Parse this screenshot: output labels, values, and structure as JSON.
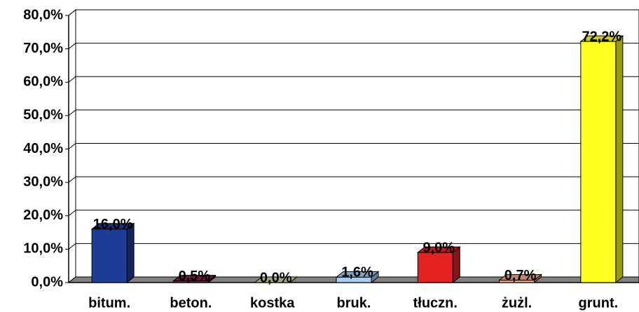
{
  "chart_data": {
    "type": "bar3d",
    "categories": [
      "bitum.",
      "beton.",
      "kostka",
      "bruk.",
      "tłuczn.",
      "żużl.",
      "grunt."
    ],
    "values": [
      16.0,
      0.5,
      0.0,
      1.6,
      9.0,
      0.7,
      72.2
    ],
    "value_labels": [
      "16,0%",
      "0,5%",
      "0,0%",
      "1,6%",
      "9,0%",
      "0,7%",
      "72,2%"
    ],
    "colors": [
      "#1f3c96",
      "#7c1e40",
      "#cfcf9c",
      "#a9cbec",
      "#e52222",
      "#eaa98f",
      "#ffff22"
    ],
    "ylim": [
      0,
      80
    ],
    "yticks": [
      {
        "value": 0,
        "label": "0,0%"
      },
      {
        "value": 10,
        "label": "10,0%"
      },
      {
        "value": 20,
        "label": "20,0%"
      },
      {
        "value": 30,
        "label": "30,0%"
      },
      {
        "value": 40,
        "label": "40,0%"
      },
      {
        "value": 50,
        "label": "50,0%"
      },
      {
        "value": 60,
        "label": "60,0%"
      },
      {
        "value": 70,
        "label": "70,0%"
      },
      {
        "value": 80,
        "label": "80,0%"
      }
    ],
    "grid": true
  }
}
